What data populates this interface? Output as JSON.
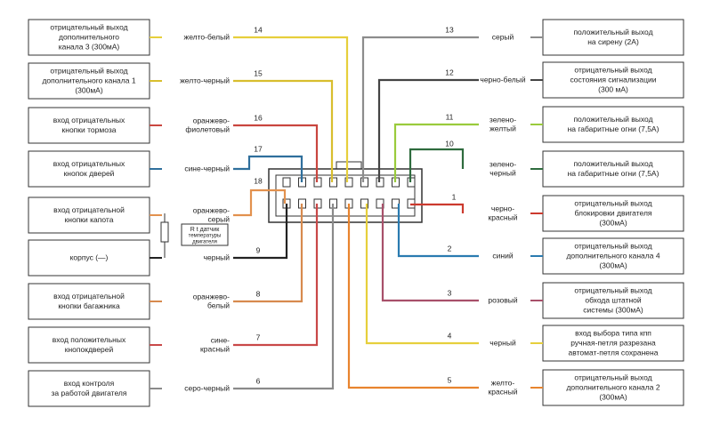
{
  "left": [
    {
      "box": [
        "отрицательный выход",
        "дополнительного",
        "канала 3 (300мА)"
      ],
      "wire": [
        "желто-белый"
      ],
      "pin": 14
    },
    {
      "box": [
        "отрицательный выход",
        "дополнительного канала 1",
        "(300мА)"
      ],
      "wire": [
        "желто-черный"
      ],
      "pin": 15
    },
    {
      "box": [
        "вход отрицательных",
        "кнопки тормоза"
      ],
      "wire": [
        "оранжево-",
        "фиолетовый"
      ],
      "pin": 16
    },
    {
      "box": [
        "вход отрицательных",
        "кнопок дверей"
      ],
      "wire": [
        "сине-черный"
      ],
      "pin": 17
    },
    {
      "box": [
        "вход отрицательной",
        "кнопки капота"
      ],
      "wire": [
        "оранжево-",
        "серый"
      ],
      "pin": 18
    },
    {
      "box": [
        "корпус (—)"
      ],
      "wire": [
        "черный"
      ],
      "pin": 9
    },
    {
      "box": [
        "вход отрицательной",
        "кнопки багажника"
      ],
      "wire": [
        "оранжево-",
        "белый"
      ],
      "pin": 8
    },
    {
      "box": [
        "вход положительных",
        "кнопокдверей"
      ],
      "wire": [
        "сине-",
        "красный"
      ],
      "pin": 7
    },
    {
      "box": [
        "вход контроля",
        "за работой двигателя"
      ],
      "wire": [
        "серо-черный"
      ],
      "pin": 6
    }
  ],
  "right": [
    {
      "box": [
        "положительный выход",
        "на сирену (2А)"
      ],
      "wire": [
        "серый"
      ],
      "pin": 13
    },
    {
      "box": [
        "отрицательный  выход",
        "состояния сигнализации",
        "(300 мА)"
      ],
      "wire": [
        "черно-белый"
      ],
      "pin": 12
    },
    {
      "box": [
        "положительный выход",
        "на габаритные огни (7,5А)"
      ],
      "wire": [
        "зелено-",
        "желтый"
      ],
      "pin": 11
    },
    {
      "box": [
        "положительный выход",
        "на габаритные огни (7,5А)"
      ],
      "wire": [
        "зелено-",
        "черный"
      ],
      "pin": 10
    },
    {
      "box": [
        "отрицательный выход",
        "блокировки двигателя",
        "(300мА)"
      ],
      "wire": [
        "черно-",
        "красный"
      ],
      "pin": 1
    },
    {
      "box": [
        "отрицательный выход",
        "дополнительного канала 4",
        "(300мА)"
      ],
      "wire": [
        "синий"
      ],
      "pin": 2
    },
    {
      "box": [
        "отрицательный выход",
        "обхода штатной",
        "системы (300мА)"
      ],
      "wire": [
        "розовый"
      ],
      "pin": 3
    },
    {
      "box": [
        "вход выбора типа кпп",
        "ручная-петля разрезана",
        "автомат-петля сохранена"
      ],
      "wire": [
        "черный"
      ],
      "pin": 4
    },
    {
      "box": [
        "отрицательный выход",
        "дополнительного канала 2",
        "(300мА)"
      ],
      "wire": [
        "желто-",
        "красный"
      ],
      "pin": 5
    }
  ],
  "sensor": [
    "R t датчик",
    "температуры",
    "двигателя"
  ]
}
